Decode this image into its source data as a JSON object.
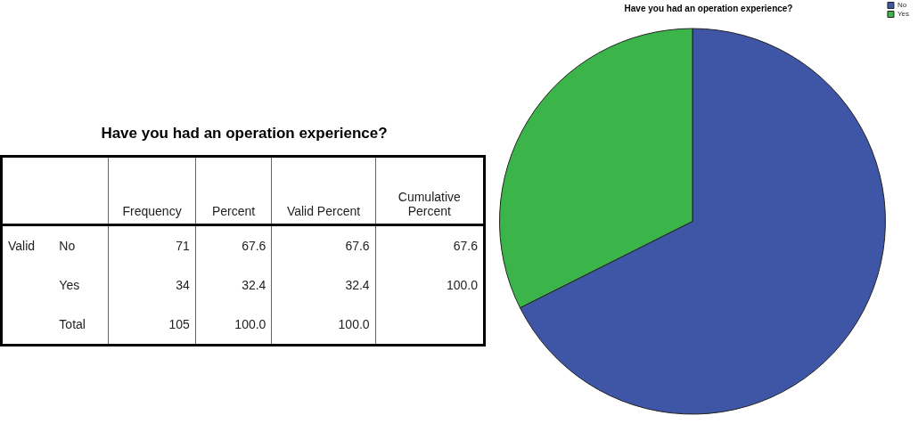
{
  "chart_data": [
    {
      "type": "other",
      "title": "Have you had an operation experience?",
      "annotations": [
        "Frequency",
        "Percent",
        "Valid Percent",
        "Cumulative Percent",
        "Valid",
        "No",
        "71",
        "67.6",
        "67.6",
        "67.6",
        "Yes",
        "34",
        "32.4",
        "32.4",
        "100.0",
        "Total",
        "105",
        "100.0",
        "100.0"
      ]
    },
    {
      "type": "pie",
      "title": "Have you had an operation experience?",
      "categories": [
        "No",
        "Yes"
      ],
      "values": [
        67.6,
        32.4
      ],
      "colors": [
        "#3f56a6",
        "#3bb54a"
      ],
      "legend": "top right"
    }
  ]
}
